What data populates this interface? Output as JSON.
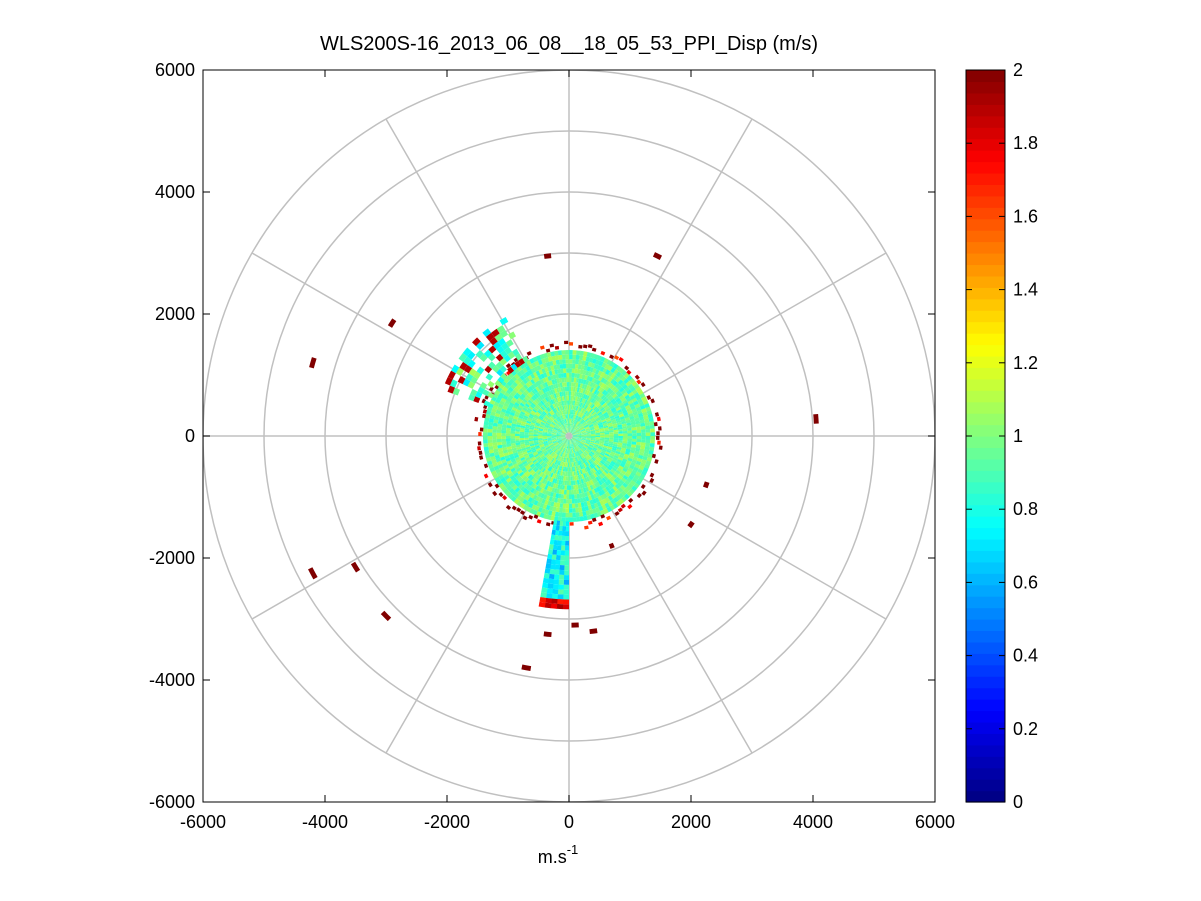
{
  "chart_data": {
    "type": "heatmap",
    "subtype": "polar-ppi-scan",
    "title": "WLS200S-16_2013_06_08__18_05_53_PPI_Disp (m/s)",
    "xlabel_base": "m.s",
    "xlabel_exp": "-1",
    "ylabel": "",
    "xlim": [
      -6000,
      6000
    ],
    "ylim": [
      -6000,
      6000
    ],
    "x_ticks": [
      "-6000",
      "-4000",
      "-2000",
      "0",
      "2000",
      "4000",
      "6000"
    ],
    "y_ticks": [
      "6000",
      "4000",
      "2000",
      "0",
      "-2000",
      "-4000",
      "-6000"
    ],
    "polar_grid": {
      "ring_step": 1000,
      "ring_count": 6,
      "spoke_step_deg": 30
    },
    "grid": true,
    "colorbar": {
      "colormap": "jet",
      "range": [
        0,
        2
      ],
      "ticks": [
        "0",
        "0.2",
        "0.4",
        "0.6",
        "0.8",
        "1",
        "1.2",
        "1.4",
        "1.6",
        "1.8",
        "2"
      ]
    },
    "data_regions": [
      {
        "name": "core",
        "range_m": [
          0,
          1400
        ],
        "azimuth_deg": [
          0,
          360
        ],
        "value_approx": 0.95
      },
      {
        "name": "south-lobe",
        "range_m": [
          1400,
          2800
        ],
        "azimuth_deg": [
          180,
          190
        ],
        "value_approx": 0.75
      },
      {
        "name": "northwest-lobe",
        "range_m": [
          1400,
          2200
        ],
        "azimuth_deg": [
          290,
          330
        ],
        "value_approx": 0.9
      },
      {
        "name": "boundary-ring",
        "range_m": [
          1400,
          1700
        ],
        "azimuth_deg": [
          0,
          360
        ],
        "value_approx": 1.9
      }
    ],
    "far_returns": [
      {
        "x": -350,
        "y": 2950,
        "value": 2
      },
      {
        "x": 1450,
        "y": 2950,
        "value": 2
      },
      {
        "x": -2900,
        "y": 1850,
        "value": 2
      },
      {
        "x": -4200,
        "y": 1200,
        "value": 2
      },
      {
        "x": 4050,
        "y": 280,
        "value": 2
      },
      {
        "x": 2250,
        "y": -800,
        "value": 2
      },
      {
        "x": 2000,
        "y": -1450,
        "value": 2
      },
      {
        "x": 700,
        "y": -1800,
        "value": 2
      },
      {
        "x": -4200,
        "y": -2250,
        "value": 2
      },
      {
        "x": -3500,
        "y": -2150,
        "value": 2
      },
      {
        "x": -3000,
        "y": -2950,
        "value": 2
      },
      {
        "x": -350,
        "y": -3250,
        "value": 2
      },
      {
        "x": 100,
        "y": -3100,
        "value": 2
      },
      {
        "x": 400,
        "y": -3200,
        "value": 2
      },
      {
        "x": -700,
        "y": -3800,
        "value": 2
      }
    ]
  }
}
